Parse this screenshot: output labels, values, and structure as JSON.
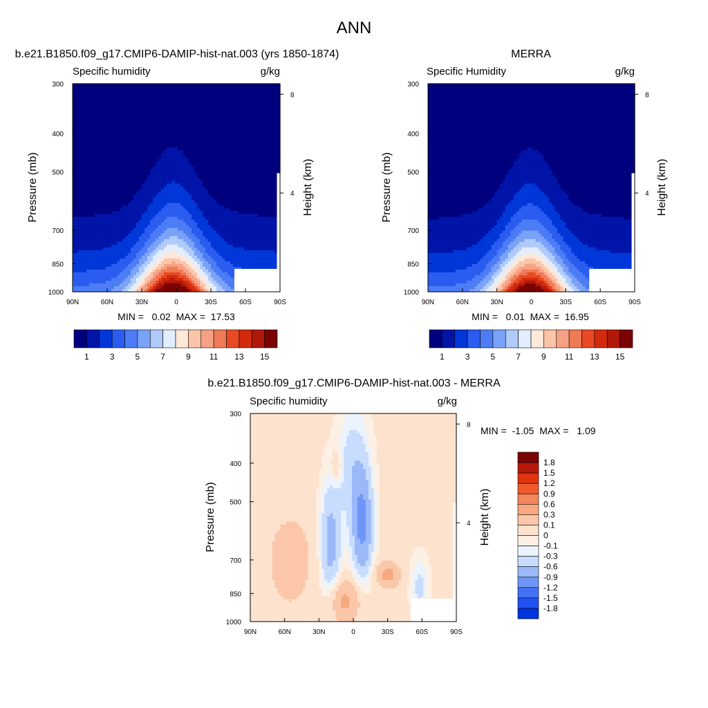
{
  "figure": {
    "title": "ANN"
  },
  "colors": {
    "abs_levels": [
      "#00007f",
      "#0014a8",
      "#0037d8",
      "#2b5cf0",
      "#4d7df5",
      "#7aa2f7",
      "#b0cbfa",
      "#e2eefd",
      "#fde8da",
      "#fbc5aa",
      "#f7a184",
      "#f07a56",
      "#e84a23",
      "#d22a0c",
      "#b0180a",
      "#7a0403"
    ],
    "diff_levels": [
      "#00007f",
      "#0018b8",
      "#0033e0",
      "#1f52f0",
      "#4471f4",
      "#6f96f7",
      "#9bb8f9",
      "#c8dcfd",
      "#eaf3fe",
      "#fdf0e4",
      "#fde2ce",
      "#fbc7a9",
      "#f7a880",
      "#f5855a",
      "#f05b2c",
      "#e23410",
      "#b8180a",
      "#7a0403"
    ]
  },
  "chart_data": [
    {
      "type": "heatmap",
      "title": "b.e21.B1850.f09_g17.CMIP6-DAMIP-hist-nat.003 (yrs 1850-1874)",
      "left_label": "Specific humidity",
      "right_label": "g/kg",
      "ylabel": "Pressure (mb)",
      "ylabel_right": "Height (km)",
      "x_ticks": [
        "90N",
        "60N",
        "30N",
        "0",
        "30S",
        "60S",
        "90S"
      ],
      "y_ticks": [
        "300",
        "400",
        "500",
        "700",
        "850",
        "1000"
      ],
      "y_ticks_right": [
        "8",
        "4"
      ],
      "stats": "MIN =   0.02  MAX =  17.53",
      "min": 0.02,
      "max": 17.53,
      "peak": 17.53,
      "colorbar_labels": [
        "1",
        "3",
        "5",
        "7",
        "9",
        "11",
        "13",
        "15"
      ]
    },
    {
      "type": "heatmap",
      "title": "MERRA",
      "left_label": "Specific Humidity",
      "right_label": "g/kg",
      "ylabel": "Pressure (mb)",
      "ylabel_right": "Height (km)",
      "x_ticks": [
        "90N",
        "60N",
        "30N",
        "0",
        "30S",
        "60S",
        "90S"
      ],
      "y_ticks": [
        "300",
        "400",
        "500",
        "700",
        "850",
        "1000"
      ],
      "y_ticks_right": [
        "8",
        "4"
      ],
      "stats": "MIN =   0.01  MAX =  16.95",
      "min": 0.01,
      "max": 16.95,
      "peak": 16.95,
      "colorbar_labels": [
        "1",
        "3",
        "5",
        "7",
        "9",
        "11",
        "13",
        "15"
      ]
    },
    {
      "type": "heatmap",
      "title": "b.e21.B1850.f09_g17.CMIP6-DAMIP-hist-nat.003 - MERRA",
      "left_label": "Specific humidity",
      "right_label": "g/kg",
      "ylabel": "Pressure (mb)",
      "ylabel_right": "Height (km)",
      "x_ticks": [
        "90N",
        "60N",
        "30N",
        "0",
        "30S",
        "60S",
        "90S"
      ],
      "y_ticks": [
        "300",
        "400",
        "500",
        "700",
        "850",
        "1000"
      ],
      "y_ticks_right": [
        "8",
        "4"
      ],
      "stats": "MIN =  -1.05  MAX =   1.09",
      "min": -1.05,
      "max": 1.09,
      "colorbar_labels": [
        "1.8",
        "1.5",
        "1.2",
        "0.9",
        "0.6",
        "0.3",
        "0.1",
        "0",
        "-0.1",
        "-0.3",
        "-0.6",
        "-0.9",
        "-1.2",
        "-1.5",
        "-1.8"
      ]
    }
  ]
}
